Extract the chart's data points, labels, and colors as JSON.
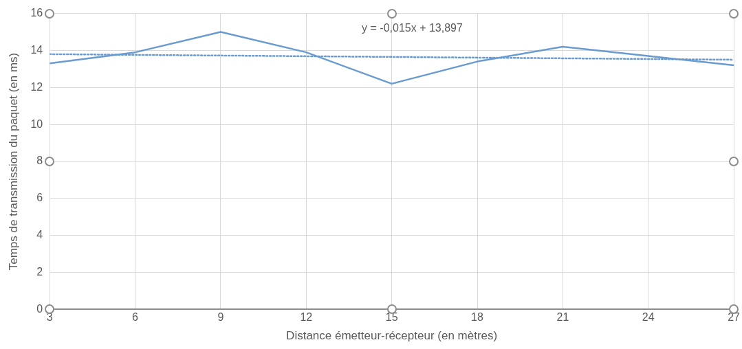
{
  "chart_data": {
    "type": "line",
    "xlabel": "Distance émetteur-récepteur (en mètres)",
    "ylabel": "Temps de transmission du paquet (en ms)",
    "x": [
      3,
      6,
      9,
      12,
      15,
      18,
      21,
      24,
      27
    ],
    "series": [
      {
        "color": "#6a9bd0",
        "values": [
          13.3,
          13.9,
          15.0,
          13.9,
          12.2,
          13.4,
          14.2,
          13.7,
          13.2
        ],
        "line_style": "solid"
      },
      {
        "type": "line",
        "color": "#6a9bd0",
        "x": [
          3,
          27
        ],
        "values": [
          13.8,
          13.5
        ],
        "line_style": "dotted"
      }
    ],
    "xlim": [
      3,
      27
    ],
    "xticks": [
      3,
      6,
      9,
      12,
      15,
      18,
      21,
      24,
      27
    ],
    "ylim": [
      0,
      16
    ],
    "yticks": [
      0,
      2,
      4,
      6,
      8,
      10,
      12,
      14,
      16
    ],
    "grid": true,
    "legend": false,
    "marker": "none",
    "annotations": [
      "y = -0,015x + 13,897"
    ]
  }
}
